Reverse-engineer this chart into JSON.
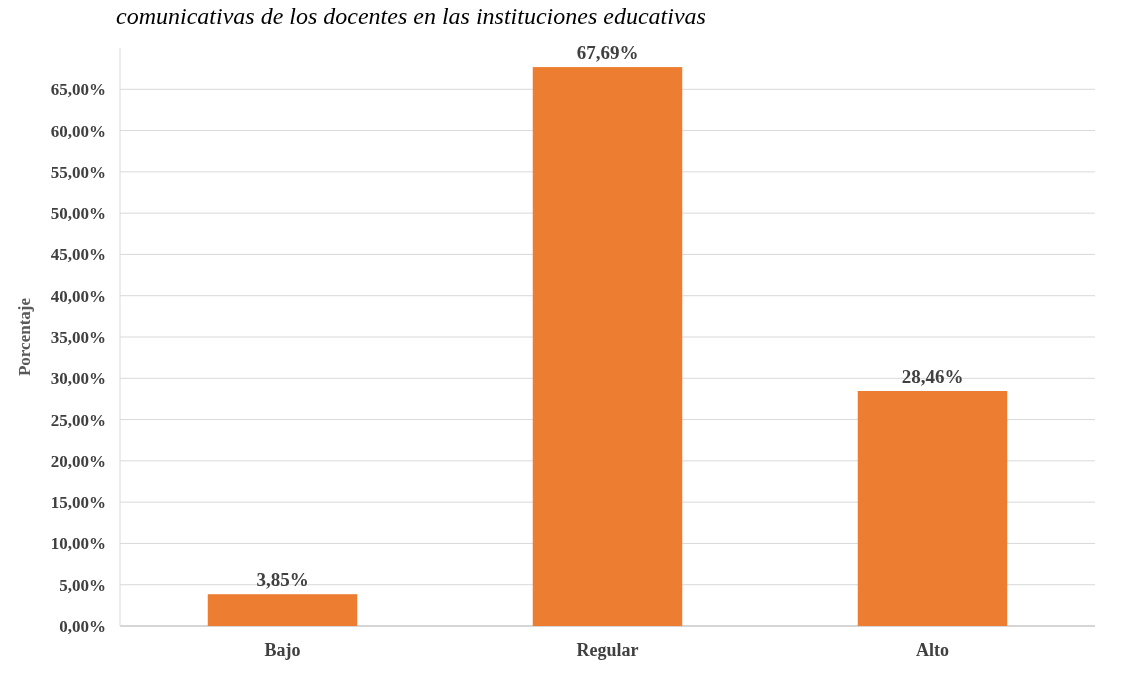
{
  "chart_data": {
    "type": "bar",
    "title": "comunicativas de los docentes en las instituciones educativas",
    "ylabel": "Porcentaje",
    "categories": [
      "Bajo",
      "Regular",
      "Alto"
    ],
    "values": [
      3.85,
      67.69,
      28.46
    ],
    "color": "#ed7d31",
    "value_labels": [
      "3,85%",
      "67,69%",
      "28,46%"
    ],
    "ylim": [
      0,
      70
    ],
    "yticks": [
      {
        "value": 0,
        "label": "0,00%"
      },
      {
        "value": 5,
        "label": "5,00%"
      },
      {
        "value": 10,
        "label": "10,00%"
      },
      {
        "value": 15,
        "label": "15,00%"
      },
      {
        "value": 20,
        "label": "20,00%"
      },
      {
        "value": 25,
        "label": "25,00%"
      },
      {
        "value": 30,
        "label": "30,00%"
      },
      {
        "value": 35,
        "label": "35,00%"
      },
      {
        "value": 40,
        "label": "40,00%"
      },
      {
        "value": 45,
        "label": "45,00%"
      },
      {
        "value": 50,
        "label": "50,00%"
      },
      {
        "value": 55,
        "label": "55,00%"
      },
      {
        "value": 60,
        "label": "60,00%"
      },
      {
        "value": 65,
        "label": "65,00%"
      }
    ],
    "grid": "y"
  }
}
